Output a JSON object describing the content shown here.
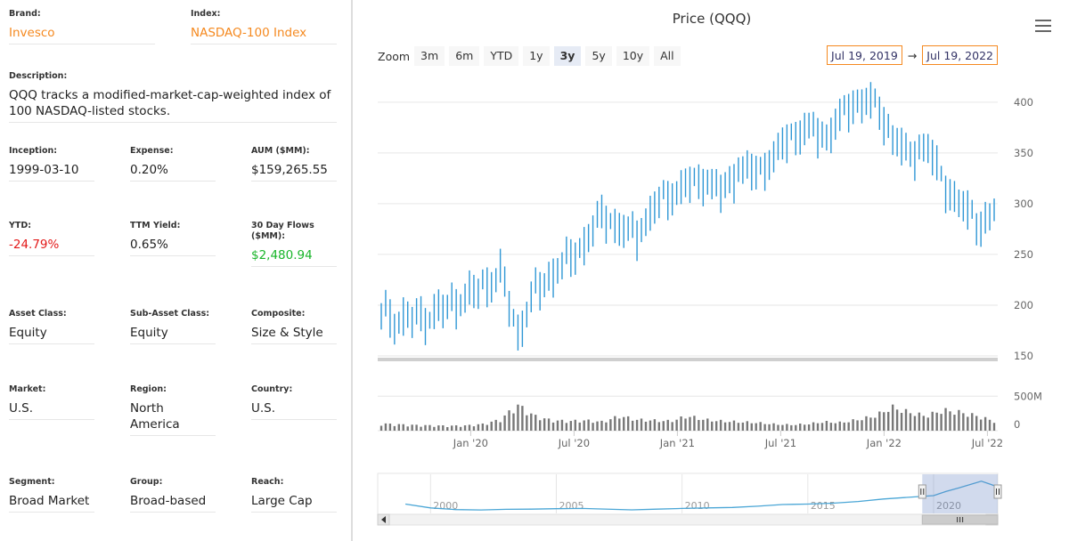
{
  "fund": {
    "brand_label": "Brand:",
    "brand": "Invesco",
    "index_label": "Index:",
    "index": "NASDAQ-100 Index",
    "description_label": "Description:",
    "description": "QQQ tracks a modified-market-cap-weighted index of 100 NASDAQ-listed stocks.",
    "inception_label": "Inception:",
    "inception": "1999-03-10",
    "expense_label": "Expense:",
    "expense": "0.20%",
    "aum_label": "AUM ($MM):",
    "aum": "$159,265.55",
    "ytd_label": "YTD:",
    "ytd": "-24.79%",
    "ttm_label": "TTM Yield:",
    "ttm": "0.65%",
    "flows_label": "30 Day Flows ($MM):",
    "flows": "$2,480.94",
    "asset_class_label": "Asset Class:",
    "asset_class": "Equity",
    "sub_asset_label": "Sub-Asset Class:",
    "sub_asset": "Equity",
    "composite_label": "Composite:",
    "composite": "Size & Style",
    "market_label": "Market:",
    "market": "U.S.",
    "region_label": "Region:",
    "region": "North America",
    "country_label": "Country:",
    "country": "U.S.",
    "segment_label": "Segment:",
    "segment": "Broad Market",
    "group_label": "Group:",
    "group": "Broad-based",
    "reach_label": "Reach:",
    "reach": "Large Cap"
  },
  "chart": {
    "title": "Price (QQQ)",
    "zoom_label": "Zoom",
    "zoom_buttons": [
      "3m",
      "6m",
      "YTD",
      "1y",
      "3y",
      "5y",
      "10y",
      "All"
    ],
    "active_zoom": "3y",
    "range_from": "Jul 19, 2019",
    "range_arrow": "→",
    "range_to": "Jul 19, 2022"
  },
  "chart_data": {
    "type": "line",
    "price": {
      "dates": [
        "2019-07",
        "2019-08",
        "2019-09",
        "2019-10",
        "2019-11",
        "2019-12",
        "2020-01",
        "2020-02",
        "2020-03",
        "2020-04",
        "2020-05",
        "2020-06",
        "2020-07",
        "2020-08",
        "2020-09",
        "2020-10",
        "2020-11",
        "2020-12",
        "2021-01",
        "2021-02",
        "2021-03",
        "2021-04",
        "2021-05",
        "2021-06",
        "2021-07",
        "2021-08",
        "2021-09",
        "2021-10",
        "2021-11",
        "2021-12",
        "2022-01",
        "2022-02",
        "2022-03",
        "2022-04",
        "2022-05",
        "2022-06",
        "2022-07"
      ],
      "values": [
        192,
        185,
        187,
        190,
        200,
        208,
        218,
        232,
        172,
        212,
        230,
        245,
        262,
        290,
        275,
        270,
        295,
        310,
        318,
        325,
        310,
        335,
        330,
        345,
        365,
        375,
        365,
        385,
        402,
        398,
        368,
        345,
        360,
        320,
        300,
        280,
        290
      ],
      "y_ticks": [
        150,
        200,
        250,
        300,
        350,
        400
      ],
      "ylim": [
        150,
        420
      ],
      "x_ticks": [
        "Jan '20",
        "Jul '20",
        "Jan '21",
        "Jul '21",
        "Jan '22",
        "Jul '22"
      ]
    },
    "volume": {
      "values_m": [
        95,
        85,
        75,
        70,
        65,
        70,
        90,
        150,
        350,
        200,
        140,
        130,
        140,
        120,
        200,
        150,
        140,
        130,
        200,
        150,
        130,
        120,
        110,
        90,
        80,
        90,
        120,
        110,
        150,
        200,
        320,
        250,
        200,
        280,
        250,
        200,
        130
      ],
      "y_ticks": [
        "0",
        "500M"
      ],
      "ylim_m": [
        0,
        620
      ]
    },
    "navigator": {
      "x_ticks": [
        "2000",
        "2005",
        "2010",
        "2015",
        "2020"
      ],
      "values": [
        100,
        55,
        35,
        30,
        38,
        40,
        45,
        48,
        32,
        40,
        48,
        55,
        60,
        75,
        95,
        100,
        110,
        130,
        160,
        180,
        200,
        250,
        290,
        370,
        330,
        300
      ],
      "years": [
        1999,
        2000,
        2001,
        2002,
        2003,
        2004,
        2005,
        2006,
        2008,
        2009,
        2010,
        2011,
        2012,
        2013,
        2014,
        2015,
        2016,
        2017,
        2018,
        2019,
        2020,
        2020.5,
        2021,
        2021.9,
        2022.3,
        2022.55
      ],
      "selected_from": 2019.55,
      "selected_to": 2022.55
    }
  }
}
